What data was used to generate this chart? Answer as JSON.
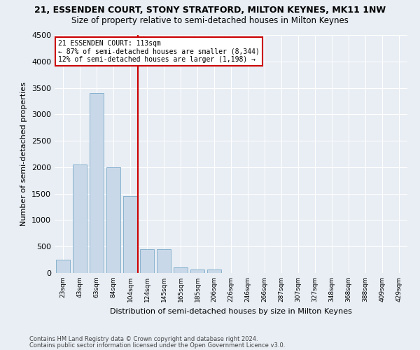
{
  "title": "21, ESSENDEN COURT, STONY STRATFORD, MILTON KEYNES, MK11 1NW",
  "subtitle": "Size of property relative to semi-detached houses in Milton Keynes",
  "xlabel": "Distribution of semi-detached houses by size in Milton Keynes",
  "ylabel": "Number of semi-detached properties",
  "footnote1": "Contains HM Land Registry data © Crown copyright and database right 2024.",
  "footnote2": "Contains public sector information licensed under the Open Government Licence v3.0.",
  "categories": [
    "23sqm",
    "43sqm",
    "63sqm",
    "84sqm",
    "104sqm",
    "124sqm",
    "145sqm",
    "165sqm",
    "185sqm",
    "206sqm",
    "226sqm",
    "246sqm",
    "266sqm",
    "287sqm",
    "307sqm",
    "327sqm",
    "348sqm",
    "368sqm",
    "388sqm",
    "409sqm",
    "429sqm"
  ],
  "values": [
    250,
    2050,
    3400,
    2000,
    1450,
    450,
    450,
    100,
    70,
    70,
    0,
    0,
    0,
    0,
    0,
    0,
    0,
    0,
    0,
    0,
    0
  ],
  "bar_color": "#c8d8e8",
  "bar_edge_color": "#7aaac8",
  "vline_color": "#cc0000",
  "ylim": [
    0,
    4500
  ],
  "yticks": [
    0,
    500,
    1000,
    1500,
    2000,
    2500,
    3000,
    3500,
    4000,
    4500
  ],
  "background_color": "#e8eef4",
  "grid_color": "#ffffff",
  "annotation_text": "21 ESSENDEN COURT: 113sqm\n← 87% of semi-detached houses are smaller (8,344)\n12% of semi-detached houses are larger (1,198) →"
}
